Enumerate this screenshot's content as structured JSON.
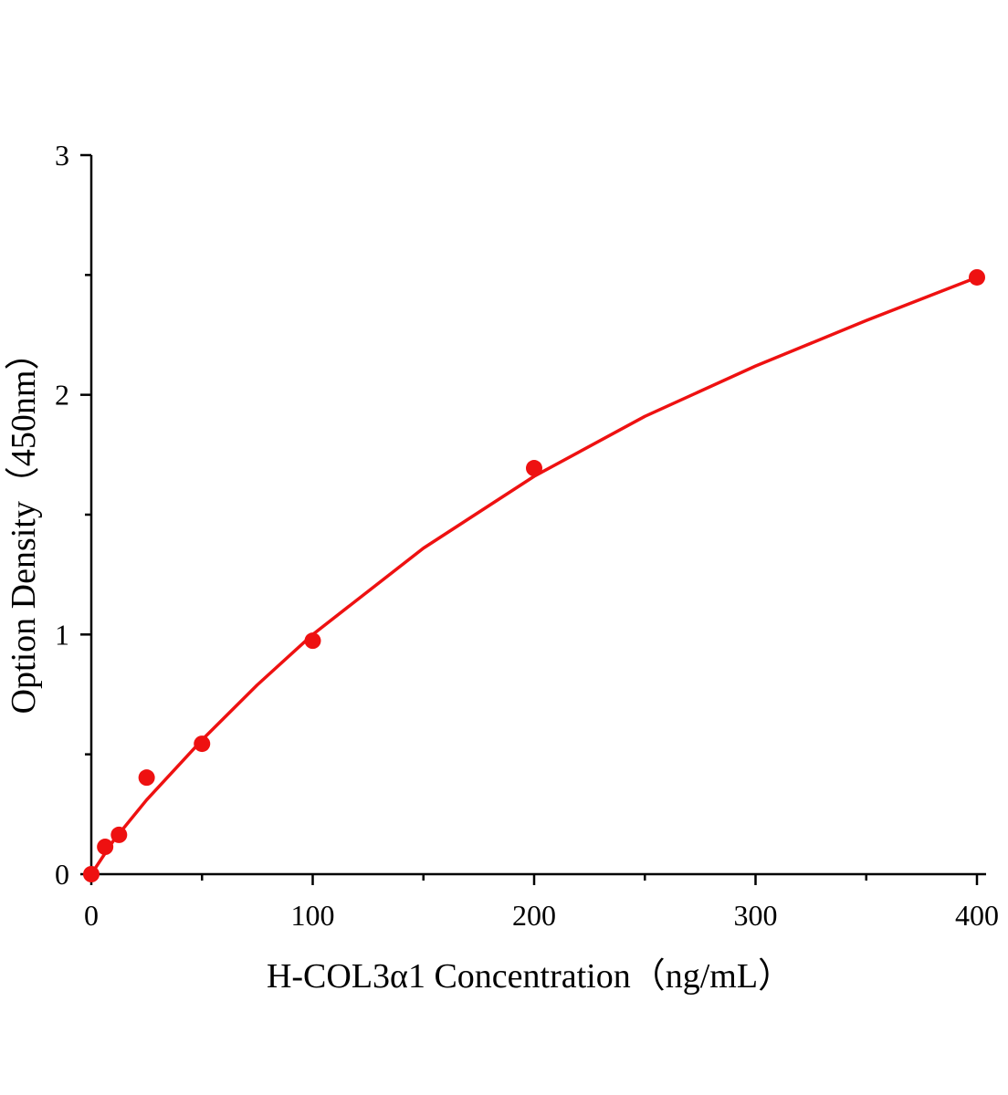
{
  "chart_data": {
    "type": "scatter",
    "x_label": "H-COL3α1 Concentration（ng/mL）",
    "y_label": "Option Density（450nm）",
    "xlim": [
      0,
      400
    ],
    "ylim": [
      0,
      3
    ],
    "xticks": [
      0,
      100,
      200,
      300,
      400
    ],
    "yticks": [
      0,
      1,
      2,
      3
    ],
    "xminorticks": [
      50,
      150,
      250,
      350
    ],
    "yminorticks": [
      0.5,
      1.5,
      2.5
    ],
    "series": [
      {
        "type": "scatter",
        "color": "#ee1111",
        "x": [
          0,
          6.25,
          12.5,
          25,
          50,
          100,
          200,
          400
        ],
        "values": [
          0,
          0.114,
          0.164,
          0.403,
          0.544,
          0.974,
          1.694,
          2.49
        ]
      },
      {
        "type": "line",
        "color": "#ee1111",
        "x": [
          0,
          5,
          10,
          25,
          50,
          75,
          100,
          150,
          200,
          250,
          300,
          350,
          400
        ],
        "values": [
          0,
          0.07,
          0.14,
          0.31,
          0.56,
          0.79,
          1.0,
          1.36,
          1.66,
          1.91,
          2.12,
          2.31,
          2.49
        ]
      }
    ]
  }
}
